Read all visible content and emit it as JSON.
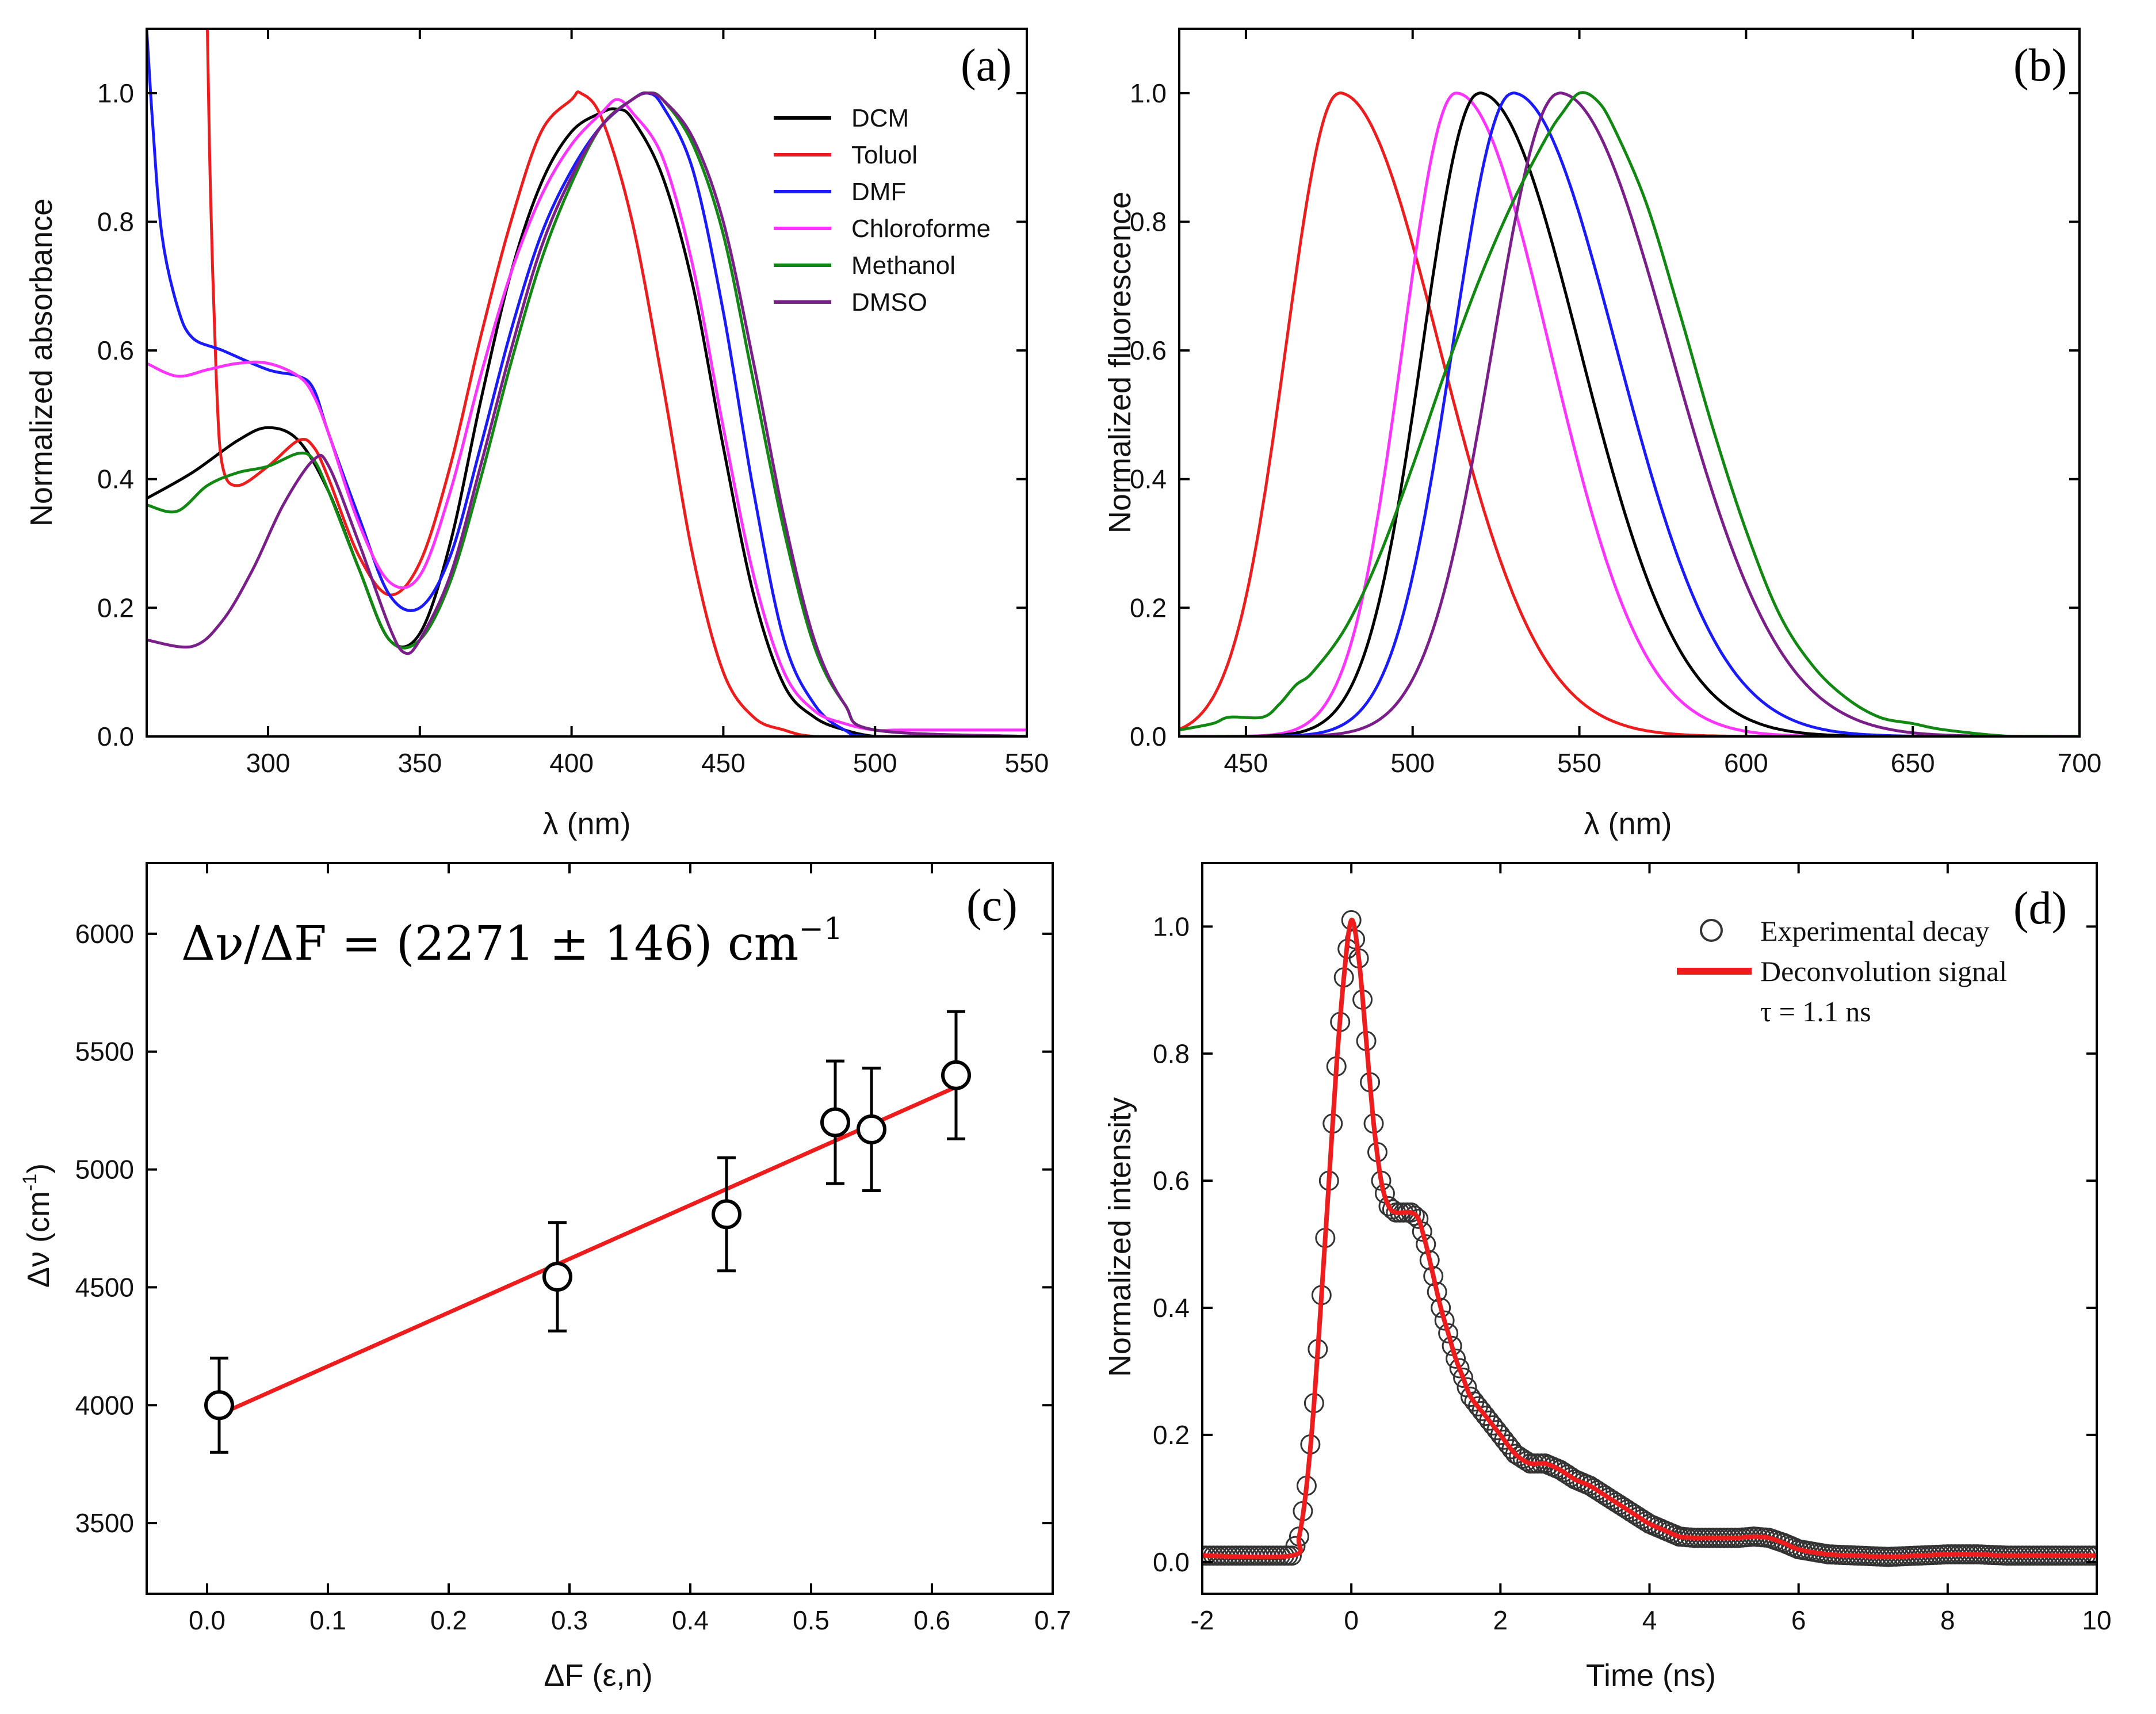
{
  "figure": {
    "colors": {
      "DCM": "#000000",
      "Toluol": "#ee1c1c",
      "DMF": "#1a1aff",
      "Chloroforme": "#ff33ff",
      "Methanol": "#118811",
      "DMSO": "#7a1f8a"
    }
  },
  "chart_data": [
    {
      "id": "a",
      "type": "line",
      "panel_label": "(a)",
      "xlabel": "λ (nm)",
      "ylabel": "Normalized absorbance",
      "xlim": [
        260,
        550
      ],
      "ylim": [
        0.0,
        1.1
      ],
      "xticks": [
        300,
        350,
        400,
        450,
        500,
        550
      ],
      "yticks": [
        0.0,
        0.2,
        0.4,
        0.6,
        0.8,
        1.0
      ],
      "xtick_labels": [
        "300",
        "350",
        "400",
        "450",
        "500",
        "550"
      ],
      "ytick_labels": [
        "0.0",
        "0.2",
        "0.4",
        "0.6",
        "0.8",
        "1.0"
      ],
      "legend": [
        "DCM",
        "Toluol",
        "DMF",
        "Chloroforme",
        "Methanol",
        "DMSO"
      ],
      "series": [
        {
          "name": "DCM",
          "x": [
            260,
            275,
            290,
            300,
            310,
            320,
            330,
            340,
            350,
            360,
            370,
            380,
            390,
            400,
            410,
            415,
            420,
            430,
            440,
            450,
            460,
            470,
            480,
            490,
            500,
            510,
            550
          ],
          "y": [
            0.37,
            0.41,
            0.46,
            0.48,
            0.46,
            0.38,
            0.26,
            0.15,
            0.16,
            0.3,
            0.52,
            0.72,
            0.86,
            0.94,
            0.97,
            0.975,
            0.96,
            0.87,
            0.7,
            0.45,
            0.22,
            0.08,
            0.03,
            0.01,
            0.0,
            0.0,
            0.0
          ]
        },
        {
          "name": "Toluol",
          "x": [
            280,
            281,
            283,
            285,
            290,
            300,
            310,
            315,
            320,
            330,
            340,
            350,
            360,
            370,
            380,
            390,
            400,
            403,
            410,
            420,
            430,
            440,
            450,
            460,
            470,
            480,
            500,
            550
          ],
          "y": [
            1.1,
            0.85,
            0.55,
            0.42,
            0.39,
            0.42,
            0.46,
            0.45,
            0.4,
            0.28,
            0.22,
            0.27,
            0.42,
            0.62,
            0.8,
            0.94,
            0.99,
            1.0,
            0.96,
            0.8,
            0.55,
            0.28,
            0.1,
            0.03,
            0.01,
            0.0,
            0.0,
            0.0
          ]
        },
        {
          "name": "DMF",
          "x": [
            260,
            262,
            265,
            270,
            275,
            285,
            300,
            310,
            315,
            320,
            330,
            340,
            350,
            360,
            370,
            380,
            390,
            400,
            410,
            420,
            425,
            430,
            440,
            450,
            460,
            470,
            480,
            490,
            500,
            550
          ],
          "y": [
            1.1,
            0.95,
            0.78,
            0.67,
            0.62,
            0.6,
            0.57,
            0.56,
            0.54,
            0.47,
            0.34,
            0.22,
            0.2,
            0.28,
            0.45,
            0.63,
            0.78,
            0.88,
            0.95,
            0.99,
            1.0,
            0.98,
            0.88,
            0.66,
            0.38,
            0.15,
            0.05,
            0.01,
            0.0,
            0.0
          ]
        },
        {
          "name": "Chloroforme",
          "x": [
            260,
            270,
            280,
            290,
            300,
            310,
            315,
            320,
            330,
            340,
            350,
            360,
            370,
            380,
            390,
            400,
            410,
            415,
            420,
            430,
            440,
            450,
            460,
            470,
            480,
            490,
            500,
            510,
            550
          ],
          "y": [
            0.58,
            0.56,
            0.57,
            0.58,
            0.58,
            0.56,
            0.53,
            0.47,
            0.33,
            0.24,
            0.25,
            0.38,
            0.56,
            0.72,
            0.84,
            0.92,
            0.97,
            0.99,
            0.97,
            0.9,
            0.73,
            0.48,
            0.25,
            0.1,
            0.04,
            0.02,
            0.01,
            0.01,
            0.01
          ]
        },
        {
          "name": "Methanol",
          "x": [
            260,
            270,
            280,
            290,
            300,
            310,
            315,
            320,
            330,
            340,
            350,
            360,
            370,
            380,
            390,
            400,
            410,
            420,
            425,
            430,
            440,
            450,
            460,
            470,
            480,
            490,
            500,
            550
          ],
          "y": [
            0.36,
            0.35,
            0.39,
            0.41,
            0.42,
            0.44,
            0.43,
            0.38,
            0.26,
            0.15,
            0.15,
            0.24,
            0.4,
            0.58,
            0.74,
            0.86,
            0.95,
            0.99,
            1.0,
            0.99,
            0.92,
            0.78,
            0.55,
            0.32,
            0.14,
            0.05,
            0.01,
            0.0
          ]
        },
        {
          "name": "DMSO",
          "x": [
            260,
            275,
            285,
            295,
            305,
            315,
            320,
            330,
            340,
            345,
            350,
            360,
            370,
            380,
            390,
            400,
            410,
            420,
            425,
            430,
            440,
            450,
            460,
            470,
            480,
            490,
            500,
            550
          ],
          "y": [
            0.15,
            0.14,
            0.18,
            0.26,
            0.36,
            0.43,
            0.42,
            0.3,
            0.17,
            0.13,
            0.15,
            0.25,
            0.42,
            0.6,
            0.76,
            0.87,
            0.95,
            0.99,
            1.0,
            0.99,
            0.93,
            0.8,
            0.58,
            0.34,
            0.15,
            0.05,
            0.01,
            0.0
          ]
        }
      ]
    },
    {
      "id": "b",
      "type": "line",
      "panel_label": "(b)",
      "xlabel": "λ (nm)",
      "ylabel": "Normalized fluorescence",
      "xlim": [
        430,
        700
      ],
      "ylim": [
        0.0,
        1.1
      ],
      "xticks": [
        450,
        500,
        550,
        600,
        650,
        700
      ],
      "yticks": [
        0.0,
        0.2,
        0.4,
        0.6,
        0.8,
        1.0
      ],
      "xtick_labels": [
        "450",
        "500",
        "550",
        "600",
        "650",
        "700"
      ],
      "ytick_labels": [
        "0.0",
        "0.2",
        "0.4",
        "0.6",
        "0.8",
        "1.0"
      ],
      "series": [
        {
          "name": "Toluol",
          "peak": 478,
          "sigma_left": 16,
          "sigma_right": 30
        },
        {
          "name": "Chloroforme",
          "peak": 513,
          "sigma_left": 16,
          "sigma_right": 28
        },
        {
          "name": "DCM",
          "peak": 520,
          "sigma_left": 17,
          "sigma_right": 30
        },
        {
          "name": "DMF",
          "peak": 530,
          "sigma_left": 18,
          "sigma_right": 31
        },
        {
          "name": "DMSO",
          "peak": 544,
          "sigma_left": 20,
          "sigma_right": 33
        },
        {
          "name": "Methanol",
          "x": [
            430,
            440,
            445,
            455,
            460,
            465,
            470,
            480,
            490,
            500,
            510,
            520,
            530,
            540,
            545,
            550,
            555,
            560,
            570,
            580,
            590,
            600,
            610,
            620,
            630,
            640,
            650,
            660,
            680,
            700
          ],
          "y": [
            0.01,
            0.02,
            0.03,
            0.03,
            0.05,
            0.08,
            0.1,
            0.17,
            0.28,
            0.42,
            0.57,
            0.71,
            0.83,
            0.93,
            0.97,
            1.0,
            0.99,
            0.95,
            0.83,
            0.66,
            0.48,
            0.32,
            0.19,
            0.11,
            0.06,
            0.03,
            0.02,
            0.01,
            0.0,
            0.0
          ]
        }
      ]
    },
    {
      "id": "c",
      "type": "scatter",
      "panel_label": "(c)",
      "xlabel": "ΔF (ε,n)",
      "ylabel": "Δν (cm⁻¹)",
      "ylabel_main": "Δν (cm",
      "ylabel_sup": "-1",
      "ylabel_close": ")",
      "xlim": [
        -0.05,
        0.7
      ],
      "ylim": [
        3200,
        6300
      ],
      "xticks": [
        0.0,
        0.1,
        0.2,
        0.3,
        0.4,
        0.5,
        0.6,
        0.7
      ],
      "yticks": [
        3500,
        4000,
        4500,
        5000,
        5500,
        6000
      ],
      "xtick_labels": [
        "0.0",
        "0.1",
        "0.2",
        "0.3",
        "0.4",
        "0.5",
        "0.6",
        "0.7"
      ],
      "ytick_labels": [
        "3500",
        "4000",
        "4500",
        "5000",
        "5500",
        "6000"
      ],
      "annotation": "Δν/ΔF = (2271 ± 146) cm⁻¹",
      "annotation_main": "Δν/ΔF = (2271 ± 146) cm",
      "annotation_sup": "−1",
      "points": [
        {
          "x": 0.01,
          "y": 4000,
          "err": 200
        },
        {
          "x": 0.29,
          "y": 4545,
          "err": 230
        },
        {
          "x": 0.43,
          "y": 4810,
          "err": 240
        },
        {
          "x": 0.52,
          "y": 5200,
          "err": 260
        },
        {
          "x": 0.55,
          "y": 5170,
          "err": 260
        },
        {
          "x": 0.62,
          "y": 5400,
          "err": 270
        }
      ],
      "fit": {
        "x": [
          0.01,
          0.62
        ],
        "y": [
          3960,
          5350
        ]
      }
    },
    {
      "id": "d",
      "type": "line",
      "panel_label": "(d)",
      "xlabel": "Time (ns)",
      "ylabel": "Normalized intensity",
      "xlim": [
        -2,
        10
      ],
      "ylim": [
        -0.05,
        1.1
      ],
      "xticks": [
        -2,
        0,
        2,
        4,
        6,
        8,
        10
      ],
      "yticks": [
        0.0,
        0.2,
        0.4,
        0.6,
        0.8,
        1.0
      ],
      "xtick_labels": [
        "-2",
        "0",
        "2",
        "4",
        "6",
        "8",
        "10"
      ],
      "ytick_labels": [
        "0.0",
        "0.2",
        "0.4",
        "0.6",
        "0.8",
        "1.0"
      ],
      "legend": {
        "experimental": "Experimental  decay",
        "fit": "Deconvolution signal",
        "tau": "τ = 1.1 ns"
      },
      "fit_curve": {
        "x": [
          -2,
          -0.8,
          -0.7,
          -0.6,
          -0.5,
          -0.4,
          -0.3,
          -0.2,
          -0.1,
          0.0,
          0.1,
          0.2,
          0.3,
          0.4,
          0.5,
          0.6,
          0.7,
          0.8,
          0.9,
          1.0,
          1.1,
          1.2,
          1.3,
          1.4,
          1.5,
          1.6,
          1.8,
          2.0,
          2.2,
          2.4,
          2.6,
          2.8,
          3.0,
          3.2,
          3.4,
          3.6,
          3.8,
          4.0,
          4.2,
          4.4,
          4.6,
          4.8,
          5.0,
          5.2,
          5.4,
          5.6,
          5.8,
          6.0,
          6.4,
          6.8,
          7.2,
          7.6,
          8.0,
          8.4,
          8.8,
          9.2,
          9.6,
          10
        ],
        "y": [
          0.01,
          0.01,
          0.04,
          0.12,
          0.25,
          0.42,
          0.6,
          0.78,
          0.92,
          1.01,
          0.95,
          0.82,
          0.69,
          0.6,
          0.56,
          0.55,
          0.55,
          0.55,
          0.54,
          0.5,
          0.45,
          0.4,
          0.36,
          0.32,
          0.29,
          0.26,
          0.23,
          0.2,
          0.17,
          0.155,
          0.155,
          0.145,
          0.13,
          0.12,
          0.105,
          0.09,
          0.075,
          0.06,
          0.05,
          0.04,
          0.038,
          0.038,
          0.038,
          0.038,
          0.04,
          0.038,
          0.03,
          0.02,
          0.012,
          0.01,
          0.008,
          0.01,
          0.012,
          0.012,
          0.01,
          0.01,
          0.01,
          0.01
        ]
      }
    }
  ]
}
